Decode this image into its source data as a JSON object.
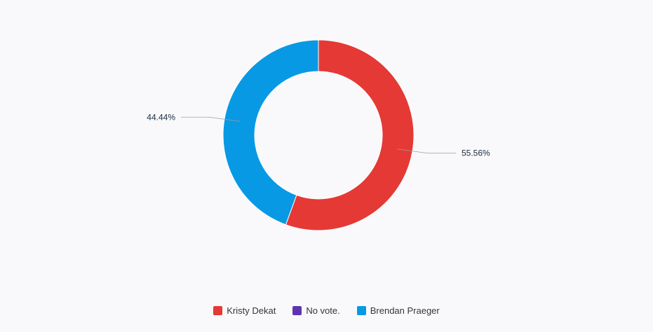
{
  "chart_data": {
    "type": "pie",
    "variant": "donut",
    "title": "",
    "categories": [
      "Kristy Dekat",
      "No vote.",
      "Brendan Praeger"
    ],
    "values": [
      55.56,
      0,
      44.44
    ],
    "labels": [
      "55.56%",
      "",
      "44.44%"
    ],
    "colors": [
      "#e53935",
      "#5e35b1",
      "#0899e4"
    ],
    "legend": "bottom"
  }
}
